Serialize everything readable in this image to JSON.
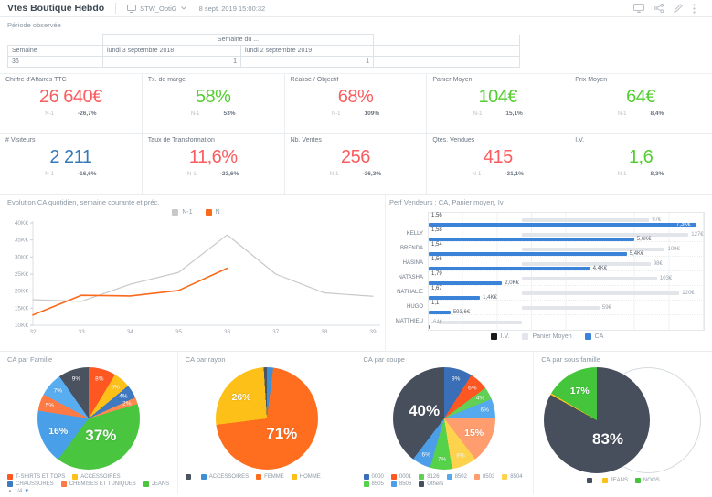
{
  "header": {
    "title": "Vtes Boutique Hebdo",
    "dataset_selector": {
      "icon": "monitor-icon",
      "value": "STW_OptiG"
    },
    "timestamp": "8 sept. 2019 15:00:32",
    "action_icons": [
      "presentation-icon",
      "share-icon",
      "edit-icon",
      "kebab-menu-icon"
    ]
  },
  "period": {
    "label": "Période observée",
    "table": {
      "group_header": "Semaine du ...",
      "col_headers": [
        "Semaine",
        "lundi 3 septembre 2018",
        "lundi 2 septembre 2019"
      ],
      "rows": [
        {
          "semaine": "36",
          "v2018": "1",
          "v2019": "1"
        }
      ]
    }
  },
  "kpis": {
    "n1_label": "N-1",
    "cards": [
      {
        "label": "Chiffre d'Affaires TTC",
        "value": "26 640€",
        "value_color": "#fa5d5f",
        "delta": "-26,7%"
      },
      {
        "label": "Tx. de marge",
        "value": "58%",
        "value_color": "#55cd32",
        "delta": "53%"
      },
      {
        "label": "Réalisé / Objectif",
        "value": "68%",
        "value_color": "#fa5d5f",
        "delta": "109%"
      },
      {
        "label": "Panier Moyen",
        "value": "104€",
        "value_color": "#55cd32",
        "delta": "15,1%"
      },
      {
        "label": "Prix Moyen",
        "value": "64€",
        "value_color": "#55cd32",
        "delta": "8,4%"
      },
      {
        "label": "# Visiteurs",
        "value": "2 211",
        "value_color": "#3579b8",
        "delta": "-16,6%"
      },
      {
        "label": "Taux de Transformation",
        "value": "11,6%",
        "value_color": "#fa5d5f",
        "delta": "-23,6%"
      },
      {
        "label": "Nb. Ventes",
        "value": "256",
        "value_color": "#fa5d5f",
        "delta": "-36,3%"
      },
      {
        "label": "Qtés. Vendues",
        "value": "415",
        "value_color": "#fa5d5f",
        "delta": "-31,1%"
      },
      {
        "label": "I.V.",
        "value": "1,6",
        "value_color": "#55cd32",
        "delta": "8,3%"
      }
    ]
  },
  "chart_data": [
    {
      "type": "line",
      "title": "Evolution CA quotidien, semaine courante et préc.",
      "x": [
        32,
        33,
        34,
        35,
        36,
        37,
        38,
        39
      ],
      "xtick_labels": [
        "32",
        "33",
        "34",
        "35",
        "36",
        "37",
        "38",
        "39"
      ],
      "ylim": [
        10,
        40
      ],
      "yticks": [
        40,
        35,
        30,
        25,
        20,
        15,
        10
      ],
      "ytick_labels": [
        "40K€",
        "35K€",
        "30K€",
        "25K€",
        "20K€",
        "15K€",
        "10K€"
      ],
      "unit": "K€",
      "legend_position": "top",
      "series": [
        {
          "name": "N-1",
          "color": "#c9c9c9",
          "values": [
            17.5,
            17,
            22,
            25.5,
            36.5,
            25,
            19.5,
            18.5
          ]
        },
        {
          "name": "N",
          "color": "#f96a1b",
          "values": [
            13,
            18.8,
            18.6,
            20.2,
            26.7
          ]
        }
      ]
    },
    {
      "type": "bar",
      "orientation": "horizontal",
      "title": "Perf Vendeurs : CA, Panier moyen, Iv",
      "legend": [
        {
          "label": "I.V.",
          "color": "#1a1a1a"
        },
        {
          "label": "Panier Moyen",
          "color": "#e2e5e9"
        },
        {
          "label": "CA",
          "color": "#3b82d9"
        }
      ],
      "ca_axis_max": 7500,
      "pm_zero_pct": 34,
      "pm_pct_per_unit": 0.476,
      "rows": [
        {
          "name": "",
          "iv": "1,56",
          "pm": 97,
          "pm_label": "97€",
          "ca": 7300,
          "ca_label": "7,3K€",
          "ca_label_inside": true
        },
        {
          "name": "KELLY",
          "iv": "1,58",
          "pm": 127,
          "pm_label": "127€",
          "ca": 5600,
          "ca_label": "5,6K€"
        },
        {
          "name": "BRENDA",
          "iv": "1,54",
          "pm": 109,
          "pm_label": "109€",
          "ca": 5400,
          "ca_label": "5,4K€"
        },
        {
          "name": "HASINA",
          "iv": "1,56",
          "pm": 98,
          "pm_label": "98€",
          "ca": 4400,
          "ca_label": "4,4K€"
        },
        {
          "name": "NATASHA",
          "iv": "1,79",
          "pm": 103,
          "pm_label": "103€",
          "ca": 2000,
          "ca_label": "2,0K€"
        },
        {
          "name": "NATHALIE",
          "iv": "1,67",
          "pm": 120,
          "pm_label": "120€",
          "ca": 1400,
          "ca_label": "1,4K€"
        },
        {
          "name": "HUGO",
          "iv": "1,1",
          "pm": 59,
          "pm_label": "59€",
          "ca": 593.6,
          "ca_label": "593,6€"
        },
        {
          "name": "MATTHIEU",
          "iv": "",
          "pm": -64,
          "pm_label": "-64€",
          "ca": 40,
          "ca_label": ""
        }
      ]
    },
    {
      "type": "pie",
      "title": "CA par Famille",
      "diameter": 112,
      "slices": [
        {
          "label": "8%",
          "pct": 8,
          "color": "#ff5722",
          "size": "s"
        },
        {
          "label": "5%",
          "pct": 5,
          "color": "#fdc018",
          "size": "s"
        },
        {
          "label": "4%",
          "pct": 4,
          "color": "#3f79c0",
          "size": "s"
        },
        {
          "label": "2%",
          "pct": 2,
          "color": "#ff8a50",
          "size": "s"
        },
        {
          "label": "37%",
          "pct": 37,
          "color": "#49c53f",
          "size": "l"
        },
        {
          "label": "16%",
          "pct": 16,
          "color": "#4aa0e8",
          "size": "m"
        },
        {
          "label": "5%",
          "pct": 5,
          "color": "#ff7a45",
          "size": "s"
        },
        {
          "label": "7%",
          "pct": 7,
          "color": "#58adf0",
          "size": "s"
        },
        {
          "label": "9%",
          "pct": 9,
          "color": "#49525e",
          "size": "s"
        }
      ],
      "legend": [
        {
          "label": "T-SHIRTS ET TOPS",
          "color": "#ff5722"
        },
        {
          "label": "ACCESSOIRES",
          "color": "#fdc018"
        },
        {
          "label": "CHAUSSURES",
          "color": "#3f79c0"
        },
        {
          "label": "CHEMISES ET TUNIQUES",
          "color": "#ff7a45"
        },
        {
          "label": "JEANS",
          "color": "#49c53f"
        }
      ],
      "pager": {
        "up": "▲",
        "text": "1/4",
        "down": "▼"
      }
    },
    {
      "type": "pie",
      "title": "CA par rayon",
      "diameter": 112,
      "slices": [
        {
          "label": "",
          "pct": 2,
          "color": "#3f8fd4",
          "size": "n"
        },
        {
          "label": "71%",
          "pct": 71,
          "color": "#ff6d1f",
          "size": "l"
        },
        {
          "label": "26%",
          "pct": 26,
          "color": "#fdc018",
          "size": "m"
        },
        {
          "label": "",
          "pct": 1,
          "color": "#4a5560",
          "size": "n"
        }
      ],
      "legend": [
        {
          "label": "",
          "color": "#4a5560"
        },
        {
          "label": "ACCESSOIRES",
          "color": "#3f8fd4"
        },
        {
          "label": "FEMME",
          "color": "#ff6d1f"
        },
        {
          "label": "HOMME",
          "color": "#fdc018"
        }
      ]
    },
    {
      "type": "pie",
      "title": "CA par coupe",
      "diameter": 112,
      "slices": [
        {
          "label": "9%",
          "pct": 9,
          "color": "#3a6fb7",
          "size": "s"
        },
        {
          "label": "6%",
          "pct": 6,
          "color": "#ff5722",
          "size": "s"
        },
        {
          "label": "4%",
          "pct": 4,
          "color": "#61d055",
          "size": "s"
        },
        {
          "label": "6%",
          "pct": 6,
          "color": "#55a9ee",
          "size": "s"
        },
        {
          "label": "15%",
          "pct": 15,
          "color": "#ff9d6e",
          "size": "m"
        },
        {
          "label": "8%",
          "pct": 8,
          "color": "#fdd34d",
          "size": "s"
        },
        {
          "label": "7%",
          "pct": 7,
          "color": "#56d14a",
          "size": "s"
        },
        {
          "label": "6%",
          "pct": 6,
          "color": "#4d9ee8",
          "size": "s"
        },
        {
          "label": "40%",
          "pct": 40,
          "color": "#474f5d",
          "size": "l"
        }
      ],
      "legend": [
        {
          "label": "0000",
          "color": "#3a6fb7"
        },
        {
          "label": "0001",
          "color": "#ff5722"
        },
        {
          "label": "8126",
          "color": "#61d055"
        },
        {
          "label": "8502",
          "color": "#55a9ee"
        },
        {
          "label": "8503",
          "color": "#ff9d6e"
        },
        {
          "label": "8504",
          "color": "#fdd34d"
        },
        {
          "label": "8505",
          "color": "#56d14a"
        },
        {
          "label": "8506",
          "color": "#4d9ee8"
        },
        {
          "label": "Others",
          "color": "#474f5d"
        }
      ]
    },
    {
      "type": "pie",
      "title": "CA par sous famille",
      "diameter": 116,
      "ghost": true,
      "legend_center": true,
      "slices": [
        {
          "label": "83%",
          "pct": 83,
          "color": "#474f5d",
          "size": "l"
        },
        {
          "label": "",
          "pct": 0.5,
          "color": "#fdc018",
          "size": "n"
        },
        {
          "label": "17%",
          "pct": 16.5,
          "color": "#44c53c",
          "size": "m"
        }
      ],
      "legend": [
        {
          "label": "",
          "color": "#474f5d"
        },
        {
          "label": "JEANS",
          "color": "#fdc018"
        },
        {
          "label": "NOOS",
          "color": "#44c53c"
        }
      ]
    }
  ]
}
